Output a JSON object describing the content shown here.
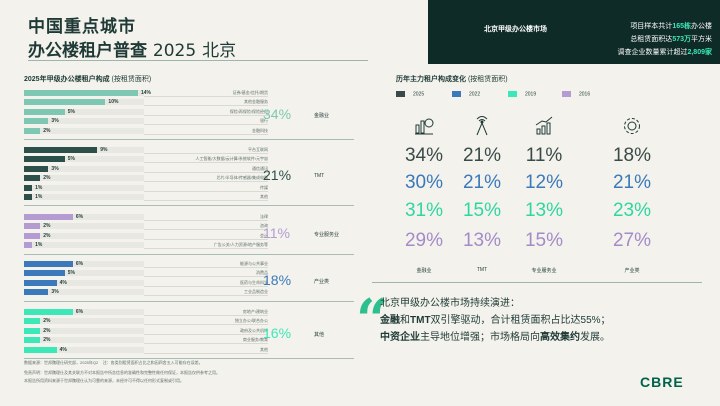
{
  "header": {
    "title_line1": "中国重点城市",
    "title_line2": "办公楼租户普查",
    "title_year": "2025",
    "title_city": "北京",
    "topbox_label": "北京甲级办公楼市场",
    "info_line1_pre": "项目样本共计",
    "info_line1_num": "165栋",
    "info_line1_post": "办公楼",
    "info_line2_pre": "总租赁面积达",
    "info_line2_num": "573万",
    "info_line2_post": "平方米",
    "info_line3_pre": "调查企业数量累计超过",
    "info_line3_num": "2,809家"
  },
  "left": {
    "title": "2025年甲级办公楼租户构成",
    "subtitle": "(按租赁面积)",
    "groups": [
      {
        "share": "34%",
        "label": "金融业",
        "color": "#7ec8b3",
        "items": [
          {
            "pct": "14%",
            "value": 14,
            "name": "证券/基金/信托/期货"
          },
          {
            "pct": "10%",
            "value": 10,
            "name": "其他金融服务"
          },
          {
            "pct": "5%",
            "value": 5,
            "name": "保险/再保险/保险经纪"
          },
          {
            "pct": "3%",
            "value": 3,
            "name": "银行"
          },
          {
            "pct": "2%",
            "value": 2,
            "name": "金融科技"
          }
        ]
      },
      {
        "share": "21%",
        "label": "TMT",
        "color": "#2d4f4a",
        "items": [
          {
            "pct": "9%",
            "value": 9,
            "name": "平台互联网"
          },
          {
            "pct": "5%",
            "value": 5,
            "name": "人工智能/大数据/云计算/系统软件/元宇宙"
          },
          {
            "pct": "3%",
            "value": 3,
            "name": "通信通讯"
          },
          {
            "pct": "2%",
            "value": 2,
            "name": "芯片/半导体/传感器/集成电路"
          },
          {
            "pct": "1%",
            "value": 1,
            "name": "传媒"
          },
          {
            "pct": "1%",
            "value": 1,
            "name": "其他"
          }
        ]
      },
      {
        "share": "11%",
        "label": "专业服务业",
        "color": "#b49bd2",
        "items": [
          {
            "pct": "6%",
            "value": 6,
            "name": "法律"
          },
          {
            "pct": "2%",
            "value": 2,
            "name": "咨询"
          },
          {
            "pct": "2%",
            "value": 2,
            "name": "会计"
          },
          {
            "pct": "1%",
            "value": 1,
            "name": "广告公关/人力资源/地产服务等"
          }
        ]
      },
      {
        "share": "18%",
        "label": "产业类",
        "color": "#3b79ba",
        "items": [
          {
            "pct": "6%",
            "value": 6,
            "name": "能源与公共事业"
          },
          {
            "pct": "5%",
            "value": 5,
            "name": "消费品"
          },
          {
            "pct": "4%",
            "value": 4,
            "name": "医药与生命科学"
          },
          {
            "pct": "3%",
            "value": 3,
            "name": "工业品制造业"
          }
        ]
      },
      {
        "share": "16%",
        "label": "其他",
        "color": "#3de8b8",
        "items": [
          {
            "pct": "6%",
            "value": 6,
            "name": "房地产/建筑业"
          },
          {
            "pct": "2%",
            "value": 2,
            "name": "独立办公/联合办公"
          },
          {
            "pct": "2%",
            "value": 2,
            "name": "政府及公共机构"
          },
          {
            "pct": "2%",
            "value": 2,
            "name": "商业服务/教育"
          },
          {
            "pct": "4%",
            "value": 4,
            "name": "其他"
          }
        ]
      }
    ]
  },
  "right": {
    "title": "历年主力租户构成变化",
    "subtitle": "(按租赁面积)",
    "legend": [
      {
        "year": "2025",
        "color": "#3a4a48"
      },
      {
        "year": "2022",
        "color": "#3b79ba"
      },
      {
        "year": "2019",
        "color": "#3de8b8"
      },
      {
        "year": "2016",
        "color": "#b49bd2"
      }
    ],
    "columns": [
      {
        "label": "金融业",
        "icon": "finance-icon",
        "values": [
          "34%",
          "30%",
          "31%",
          "29%"
        ]
      },
      {
        "label": "TMT",
        "icon": "antenna-icon",
        "values": [
          "21%",
          "21%",
          "15%",
          "13%"
        ]
      },
      {
        "label": "专业服务业",
        "icon": "growth-icon",
        "values": [
          "11%",
          "12%",
          "13%",
          "15%"
        ]
      },
      {
        "label": "产业类",
        "icon": "gear-icon",
        "values": [
          "18%",
          "21%",
          "23%",
          "27%"
        ]
      }
    ]
  },
  "quote": {
    "line1": "北京甲级办公楼市场持续演进：",
    "line2_a": "金融",
    "line2_b": "和",
    "line2_c": "TMT",
    "line2_d": "双引擎驱动，合计租赁面积占比达55%；",
    "line3_a": "中资企业",
    "line3_b": "主导地位增强；市场格局向",
    "line3_c": "高效集约",
    "line3_d": "发展。"
  },
  "footer": {
    "note1": "数据来源：世邦魏理仕研究部，2025年Q2",
    "note2": "注：各类别租赁面积占比之和因四舍五入可能存在误差。",
    "note3": "免责声明：世邦魏理仕及其关联方不对本报告中所含信息的准确性和完整性做任何保证，本报告仅供参考之用。",
    "note4": "本报告所用资料来源于世邦魏理仕认为可靠的来源，未经许可不得以任何形式复制或引用。",
    "brand": "CBRE"
  }
}
